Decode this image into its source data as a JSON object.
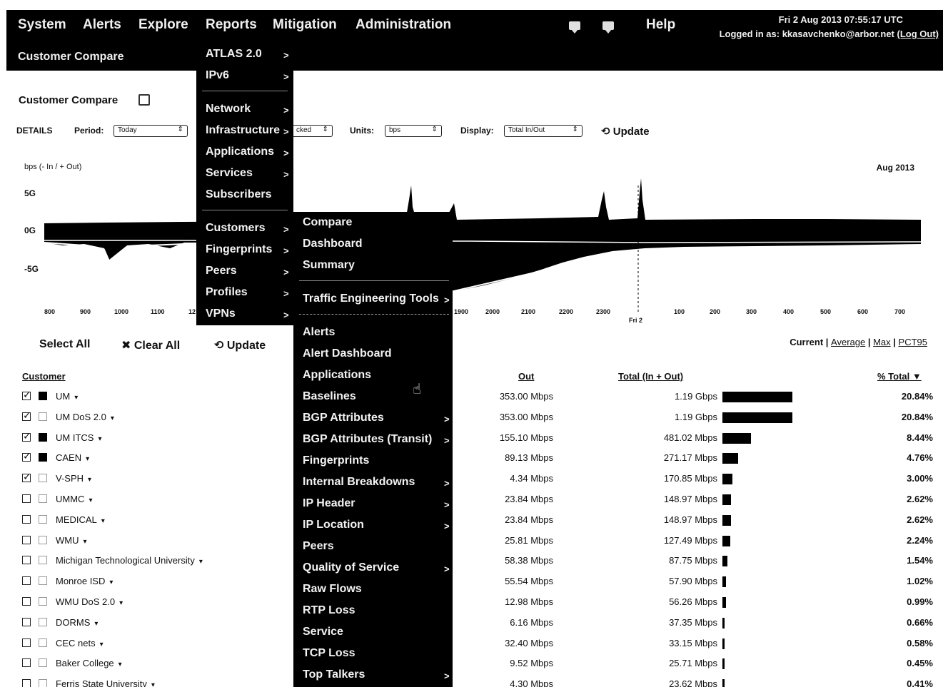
{
  "topnav": {
    "items": [
      "System",
      "Alerts",
      "Explore",
      "Reports",
      "Mitigation",
      "Administration"
    ],
    "help": "Help",
    "datetime": "Fri 2 Aug 2013 07:55:17 UTC",
    "logged_in": "Logged in as: kkasavchenko@arbor.net",
    "logout": "(Log Out)",
    "subtitle": "Customer Compare"
  },
  "page": {
    "title": "Customer Compare",
    "details_label": "DETAILS",
    "period_label": "Period:",
    "period_value": "Today",
    "stacked_value": "cked",
    "units_label": "Units:",
    "units_value": "bps",
    "display_label": "Display:",
    "display_value": "Total In/Out",
    "update_label": "Update"
  },
  "chart_data": {
    "type": "area",
    "ylabel": "bps (- In / + Out)",
    "period_label": "Aug 2013",
    "y_ticks": [
      "5G",
      "0G",
      "-5G"
    ],
    "x_ticks": [
      "800",
      "900",
      "1000",
      "1100",
      "12",
      "1900",
      "2000",
      "2100",
      "2200",
      "2300",
      "Fri 2",
      "100",
      "200",
      "300",
      "400",
      "500",
      "600",
      "700"
    ]
  },
  "controls": {
    "select_all": "Select All",
    "clear_all": "Clear All",
    "update": "Update",
    "views": [
      "Current",
      "Average",
      "Max",
      "PCT95"
    ]
  },
  "table": {
    "headers": {
      "customer": "Customer",
      "out": "Out",
      "total": "Total (In + Out)",
      "pct": "% Total"
    },
    "rows": [
      {
        "name": "UM",
        "checked": true,
        "color": "#000000",
        "out": "353.00 Mbps",
        "total": "1.19 Gbps",
        "pct_value": 20.84,
        "pct": "20.84%"
      },
      {
        "name": "UM DoS 2.0",
        "checked": true,
        "color": "#ffffff",
        "out": "353.00 Mbps",
        "total": "1.19 Gbps",
        "pct_value": 20.84,
        "pct": "20.84%"
      },
      {
        "name": "UM ITCS",
        "checked": true,
        "color": "#000000",
        "out": "155.10 Mbps",
        "total": "481.02 Mbps",
        "pct_value": 8.44,
        "pct": "8.44%"
      },
      {
        "name": "CAEN",
        "checked": true,
        "color": "#000000",
        "out": "89.13 Mbps",
        "total": "271.17 Mbps",
        "pct_value": 4.76,
        "pct": "4.76%"
      },
      {
        "name": "V-SPH",
        "checked": true,
        "color": "#ffffff",
        "out": "4.34 Mbps",
        "total": "170.85 Mbps",
        "pct_value": 3.0,
        "pct": "3.00%"
      },
      {
        "name": "UMMC",
        "checked": false,
        "color": "#ffffff",
        "out": "23.84 Mbps",
        "total": "148.97 Mbps",
        "pct_value": 2.62,
        "pct": "2.62%"
      },
      {
        "name": "MEDICAL",
        "checked": false,
        "color": "#ffffff",
        "out": "23.84 Mbps",
        "total": "148.97 Mbps",
        "pct_value": 2.62,
        "pct": "2.62%"
      },
      {
        "name": "WMU",
        "checked": false,
        "color": "#ffffff",
        "out": "25.81 Mbps",
        "total": "127.49 Mbps",
        "pct_value": 2.24,
        "pct": "2.24%"
      },
      {
        "name": "Michigan Technological University",
        "checked": false,
        "color": "#ffffff",
        "out": "58.38 Mbps",
        "total": "87.75 Mbps",
        "pct_value": 1.54,
        "pct": "1.54%"
      },
      {
        "name": "Monroe ISD",
        "checked": false,
        "color": "#ffffff",
        "out": "55.54 Mbps",
        "total": "57.90 Mbps",
        "pct_value": 1.02,
        "pct": "1.02%"
      },
      {
        "name": "WMU DoS 2.0",
        "checked": false,
        "color": "#ffffff",
        "out": "12.98 Mbps",
        "total": "56.26 Mbps",
        "pct_value": 0.99,
        "pct": "0.99%"
      },
      {
        "name": "DORMS",
        "checked": false,
        "color": "#ffffff",
        "out": "6.16 Mbps",
        "total": "37.35 Mbps",
        "pct_value": 0.66,
        "pct": "0.66%"
      },
      {
        "name": "CEC nets",
        "checked": false,
        "color": "#ffffff",
        "out": "32.40 Mbps",
        "total": "33.15 Mbps",
        "pct_value": 0.58,
        "pct": "0.58%"
      },
      {
        "name": "Baker College",
        "checked": false,
        "color": "#ffffff",
        "out": "9.52 Mbps",
        "total": "25.71 Mbps",
        "pct_value": 0.45,
        "pct": "0.45%"
      },
      {
        "name": "Ferris State University",
        "checked": false,
        "color": "#ffffff",
        "out": "4.30 Mbps",
        "total": "23.62 Mbps",
        "pct_value": 0.41,
        "pct": "0.41%"
      }
    ]
  },
  "reports_menu": {
    "items": [
      "ATLAS 2.0",
      "IPv6",
      "Network",
      "Infrastructure",
      "Applications",
      "Services",
      "Subscribers",
      "Customers",
      "Fingerprints",
      "Peers",
      "Profiles",
      "VPNs"
    ]
  },
  "customers_submenu": {
    "items": [
      "Compare",
      "Dashboard",
      "Summary",
      "Traffic Engineering Tools",
      "Alerts",
      "Alert Dashboard",
      "Applications",
      "Baselines",
      "BGP Attributes",
      "BGP Attributes (Transit)",
      "Fingerprints",
      "Internal Breakdowns",
      "IP Header",
      "IP Location",
      "Peers",
      "Quality of Service",
      "Raw Flows",
      "RTP Loss",
      "Service",
      "TCP Loss",
      "Top Talkers"
    ]
  }
}
